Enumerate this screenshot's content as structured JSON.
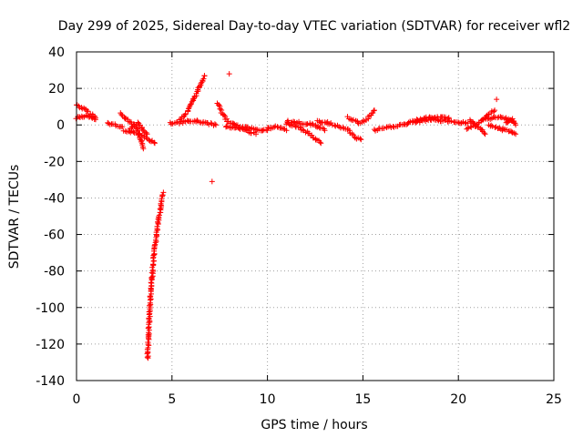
{
  "chart_data": {
    "type": "scatter",
    "title": "Day 299 of 2025, Sidereal Day-to-day VTEC variation (SDTVAR) for receiver wfl2",
    "xlabel": "GPS time / hours",
    "ylabel": "SDTVAR / TECUs",
    "xlim": [
      0,
      25
    ],
    "ylim": [
      -140,
      40
    ],
    "xticks": [
      "0",
      "5",
      "10",
      "15",
      "20",
      "25"
    ],
    "yticks": [
      "40",
      "20",
      "0",
      "-20",
      "-40",
      "-60",
      "-80",
      "-100",
      "-120",
      "-140"
    ],
    "grid": true,
    "marker": "+",
    "color": "#ff0000",
    "segments": [
      {
        "x": [
          0.0,
          0.5,
          1.0
        ],
        "y": [
          11,
          8,
          4
        ]
      },
      {
        "x": [
          0.0,
          0.5,
          1.0
        ],
        "y": [
          4,
          5,
          3
        ]
      },
      {
        "x": [
          1.6,
          2.0,
          2.4
        ],
        "y": [
          1,
          0,
          -1
        ]
      },
      {
        "x": [
          2.3,
          2.8,
          3.2,
          3.5
        ],
        "y": [
          6,
          2,
          -2,
          -13
        ]
      },
      {
        "x": [
          2.5,
          3.0,
          3.5,
          4.1
        ],
        "y": [
          -3,
          -4,
          -6,
          -10
        ]
      },
      {
        "x": [
          2.8,
          3.2,
          3.7
        ],
        "y": [
          -2,
          1,
          -5
        ]
      },
      {
        "x": [
          3.72,
          3.75,
          3.78,
          3.82,
          3.88,
          3.95,
          4.03,
          4.12,
          4.22,
          4.33,
          4.45,
          4.55
        ],
        "y": [
          -128,
          -122,
          -114,
          -104,
          -94,
          -84,
          -75,
          -66,
          -58,
          -50,
          -42,
          -37
        ]
      },
      {
        "x": [
          4.9,
          5.3,
          5.8,
          6.3,
          6.8,
          7.3
        ],
        "y": [
          1,
          1,
          2,
          2,
          1,
          0
        ]
      },
      {
        "x": [
          5.4,
          5.8,
          6.1,
          6.4,
          6.7
        ],
        "y": [
          3,
          7,
          13,
          20,
          27
        ]
      },
      {
        "x": [
          7.4,
          7.6,
          7.9,
          8.5,
          9.2,
          10.0
        ],
        "y": [
          12,
          7,
          2,
          -1,
          -2,
          -3
        ]
      },
      {
        "x": [
          7.8,
          8.6,
          9.4
        ],
        "y": [
          -1,
          -2,
          -5
        ]
      },
      {
        "x": [
          10.0,
          10.5,
          11.0
        ],
        "y": [
          -2,
          -1,
          -3
        ]
      },
      {
        "x": [
          11.0,
          11.6,
          12.2,
          12.8
        ],
        "y": [
          1,
          -1,
          -5,
          -10
        ]
      },
      {
        "x": [
          11.0,
          11.8,
          12.5,
          13.0
        ],
        "y": [
          2,
          1,
          0,
          -3
        ]
      },
      {
        "x": [
          12.6,
          13.2,
          13.8,
          14.3
        ],
        "y": [
          2,
          1,
          -1,
          -3
        ]
      },
      {
        "x": [
          14.2,
          14.8,
          15.2,
          15.6
        ],
        "y": [
          4,
          1,
          3,
          8
        ]
      },
      {
        "x": [
          14.3,
          14.6,
          14.9
        ],
        "y": [
          -4,
          -7,
          -8
        ]
      },
      {
        "x": [
          15.6,
          16.5,
          17.5,
          18.5,
          19.5,
          20.5
        ],
        "y": [
          -3,
          -1,
          1,
          3,
          2,
          1
        ]
      },
      {
        "x": [
          17.5,
          18.5,
          19.5
        ],
        "y": [
          2,
          4,
          4
        ]
      },
      {
        "x": [
          20.4,
          21.0,
          21.5,
          21.9
        ],
        "y": [
          -2,
          0,
          5,
          8
        ]
      },
      {
        "x": [
          20.6,
          21.0,
          21.4
        ],
        "y": [
          3,
          -1,
          -5
        ]
      },
      {
        "x": [
          21.4,
          21.9,
          22.4,
          22.9
        ],
        "y": [
          3,
          4,
          4,
          2
        ]
      },
      {
        "x": [
          21.6,
          22.1,
          22.6,
          23.0
        ],
        "y": [
          0,
          -2,
          -3,
          -5
        ]
      },
      {
        "x": [
          22.5,
          22.8,
          23.0
        ],
        "y": [
          1,
          3,
          0
        ]
      }
    ],
    "outliers": [
      {
        "x": 8.0,
        "y": 28
      },
      {
        "x": 7.1,
        "y": -31
      },
      {
        "x": 22.0,
        "y": 14
      },
      {
        "x": 22.3,
        "y": -3
      }
    ]
  }
}
